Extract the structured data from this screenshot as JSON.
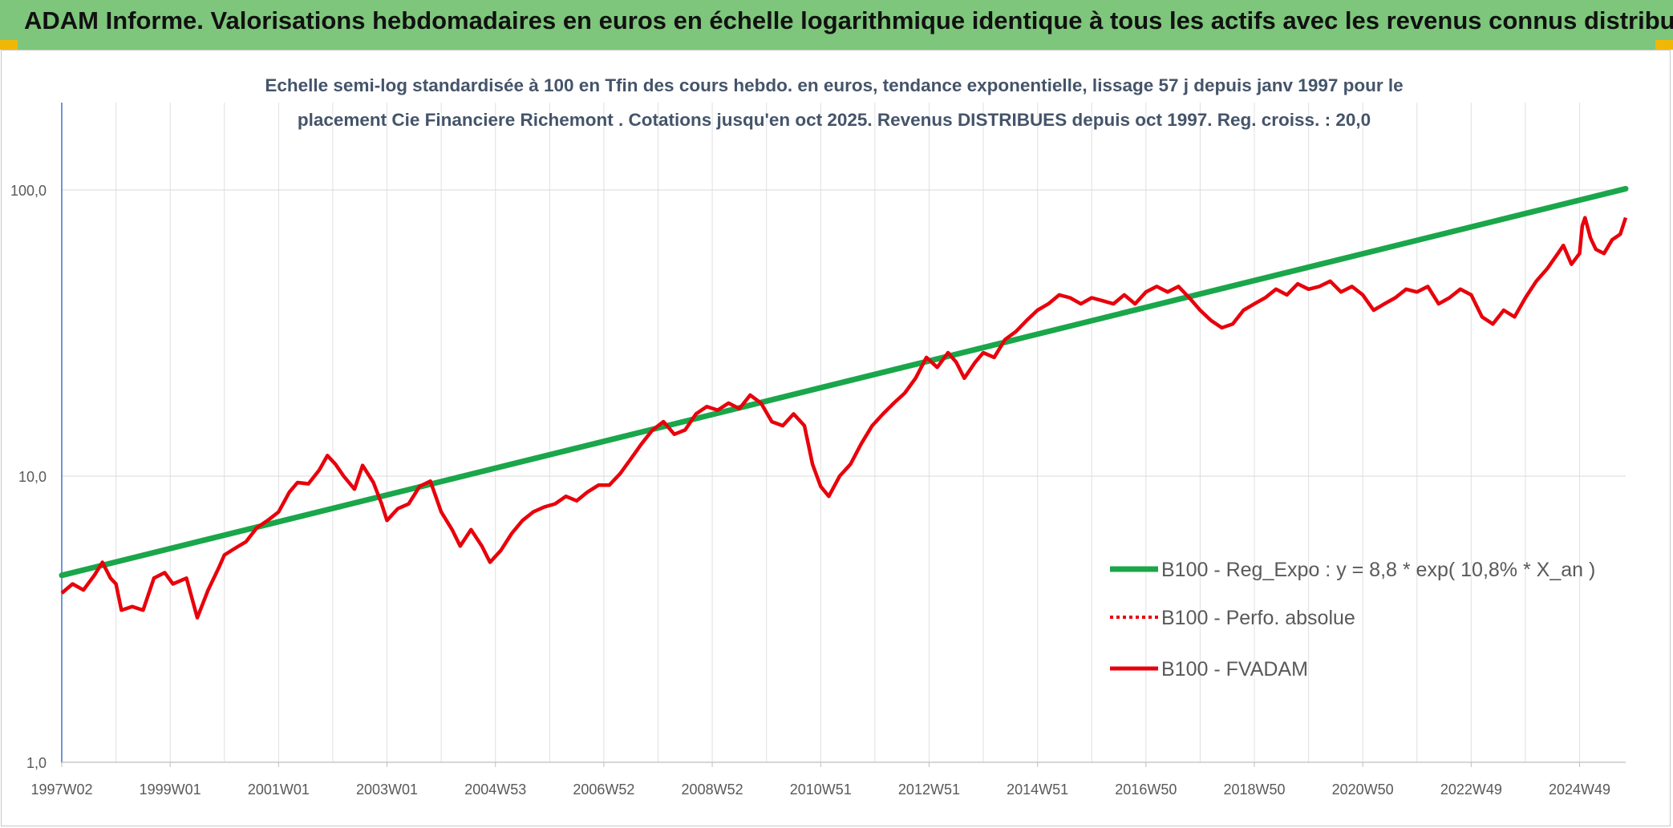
{
  "header": {
    "title": "ADAM Informe. Valorisations hebdomadaires en euros en échelle logarithmique identique à tous les actifs avec les revenus connus distribués"
  },
  "colors": {
    "header_bg": "#7dc67b",
    "trend": "#1aa64a",
    "fvadam": "#e8000b",
    "grid": "#dcdcdc",
    "axis": "#4472c4"
  },
  "chart_data": {
    "type": "line",
    "title_lines": [
      "Echelle semi-log standardisée à 100 en Tfin des cours hebdo. en euros, tendance exponentielle, lissage 57 j depuis janv 1997 pour le",
      "placement Cie Financiere Richemont . Cotations jusqu'en oct 2025. Revenus DISTRIBUES depuis oct 1997. Reg. croiss. : 20,0"
    ],
    "y_scale": "log",
    "ylim": [
      1,
      200
    ],
    "y_ticks": [
      {
        "value": 1,
        "label": "1,0"
      },
      {
        "value": 10,
        "label": "10,0"
      },
      {
        "value": 100,
        "label": "100,0"
      }
    ],
    "xlim": [
      1997.0,
      2025.85
    ],
    "x_ticks": [
      {
        "year": 1997.0,
        "label": "1997W02"
      },
      {
        "year": 1999.0,
        "label": "1999W01"
      },
      {
        "year": 2001.0,
        "label": "2001W01"
      },
      {
        "year": 2003.0,
        "label": "2003W01"
      },
      {
        "year": 2005.0,
        "label": "2004W53"
      },
      {
        "year": 2007.0,
        "label": "2006W52"
      },
      {
        "year": 2009.0,
        "label": "2008W52"
      },
      {
        "year": 2011.0,
        "label": "2010W51"
      },
      {
        "year": 2013.0,
        "label": "2012W51"
      },
      {
        "year": 2015.0,
        "label": "2014W51"
      },
      {
        "year": 2017.0,
        "label": "2016W50"
      },
      {
        "year": 2019.0,
        "label": "2018W50"
      },
      {
        "year": 2021.0,
        "label": "2020W50"
      },
      {
        "year": 2023.0,
        "label": "2022W49"
      },
      {
        "year": 2025.0,
        "label": "2024W49"
      }
    ],
    "legend_position": "bottom-right",
    "series": [
      {
        "name": "B100 - Reg_Expo : y = 8,8 * exp( 10,8% * X_an )",
        "style": "solid-thick",
        "color": "#1aa64a",
        "points": [
          [
            1997.0,
            4.5
          ],
          [
            2025.85,
            101
          ]
        ]
      },
      {
        "name": "B100 - Perfo. absolue",
        "style": "dotted",
        "color": "#e8000b",
        "points": []
      },
      {
        "name": "B100 - FVADAM",
        "style": "solid",
        "color": "#e8000b",
        "points": [
          [
            1997.0,
            3.9
          ],
          [
            1997.2,
            4.2
          ],
          [
            1997.4,
            4.0
          ],
          [
            1997.6,
            4.5
          ],
          [
            1997.75,
            5.0
          ],
          [
            1997.9,
            4.4
          ],
          [
            1998.0,
            4.2
          ],
          [
            1998.1,
            3.4
          ],
          [
            1998.3,
            3.5
          ],
          [
            1998.5,
            3.4
          ],
          [
            1998.7,
            4.4
          ],
          [
            1998.9,
            4.6
          ],
          [
            1999.05,
            4.2
          ],
          [
            1999.3,
            4.4
          ],
          [
            1999.5,
            3.2
          ],
          [
            1999.7,
            4.0
          ],
          [
            1999.9,
            4.8
          ],
          [
            2000.0,
            5.3
          ],
          [
            2000.2,
            5.6
          ],
          [
            2000.4,
            5.9
          ],
          [
            2000.6,
            6.6
          ],
          [
            2000.8,
            7.0
          ],
          [
            2001.0,
            7.5
          ],
          [
            2001.2,
            8.8
          ],
          [
            2001.35,
            9.5
          ],
          [
            2001.55,
            9.4
          ],
          [
            2001.75,
            10.5
          ],
          [
            2001.9,
            11.8
          ],
          [
            2002.05,
            11.0
          ],
          [
            2002.2,
            10.0
          ],
          [
            2002.4,
            9.0
          ],
          [
            2002.55,
            10.9
          ],
          [
            2002.75,
            9.5
          ],
          [
            2002.9,
            8.0
          ],
          [
            2003.0,
            7.0
          ],
          [
            2003.2,
            7.7
          ],
          [
            2003.4,
            8.0
          ],
          [
            2003.6,
            9.2
          ],
          [
            2003.8,
            9.6
          ],
          [
            2004.0,
            7.5
          ],
          [
            2004.2,
            6.5
          ],
          [
            2004.35,
            5.7
          ],
          [
            2004.55,
            6.5
          ],
          [
            2004.75,
            5.7
          ],
          [
            2004.9,
            5.0
          ],
          [
            2005.1,
            5.5
          ],
          [
            2005.3,
            6.3
          ],
          [
            2005.5,
            7.0
          ],
          [
            2005.7,
            7.5
          ],
          [
            2005.9,
            7.8
          ],
          [
            2006.1,
            8.0
          ],
          [
            2006.3,
            8.5
          ],
          [
            2006.5,
            8.2
          ],
          [
            2006.7,
            8.8
          ],
          [
            2006.9,
            9.3
          ],
          [
            2007.1,
            9.3
          ],
          [
            2007.3,
            10.2
          ],
          [
            2007.5,
            11.5
          ],
          [
            2007.7,
            13.0
          ],
          [
            2007.9,
            14.5
          ],
          [
            2008.1,
            15.5
          ],
          [
            2008.3,
            14.0
          ],
          [
            2008.5,
            14.5
          ],
          [
            2008.7,
            16.5
          ],
          [
            2008.9,
            17.5
          ],
          [
            2009.1,
            17.0
          ],
          [
            2009.3,
            18.0
          ],
          [
            2009.5,
            17.2
          ],
          [
            2009.7,
            19.2
          ],
          [
            2009.9,
            18.0
          ],
          [
            2010.1,
            15.5
          ],
          [
            2010.3,
            15.0
          ],
          [
            2010.5,
            16.5
          ],
          [
            2010.7,
            15.0
          ],
          [
            2010.85,
            11.0
          ],
          [
            2011.0,
            9.2
          ],
          [
            2011.15,
            8.5
          ],
          [
            2011.35,
            10.0
          ],
          [
            2011.55,
            11.0
          ],
          [
            2011.75,
            13.0
          ],
          [
            2011.95,
            15.0
          ],
          [
            2012.15,
            16.5
          ],
          [
            2012.35,
            18.0
          ],
          [
            2012.55,
            19.5
          ],
          [
            2012.75,
            22.0
          ],
          [
            2012.95,
            26.0
          ],
          [
            2013.15,
            24.0
          ],
          [
            2013.35,
            27.0
          ],
          [
            2013.5,
            25.0
          ],
          [
            2013.65,
            22.0
          ],
          [
            2013.85,
            25.0
          ],
          [
            2014.0,
            27.0
          ],
          [
            2014.2,
            26.0
          ],
          [
            2014.4,
            30.0
          ],
          [
            2014.6,
            32.0
          ],
          [
            2014.8,
            35.0
          ],
          [
            2015.0,
            38.0
          ],
          [
            2015.2,
            40.0
          ],
          [
            2015.4,
            43.0
          ],
          [
            2015.6,
            42.0
          ],
          [
            2015.8,
            40.0
          ],
          [
            2016.0,
            42.0
          ],
          [
            2016.2,
            41.0
          ],
          [
            2016.4,
            40.0
          ],
          [
            2016.6,
            43.0
          ],
          [
            2016.8,
            40.0
          ],
          [
            2017.0,
            44.0
          ],
          [
            2017.2,
            46.0
          ],
          [
            2017.4,
            44.0
          ],
          [
            2017.6,
            46.0
          ],
          [
            2017.8,
            42.0
          ],
          [
            2018.0,
            38.0
          ],
          [
            2018.2,
            35.0
          ],
          [
            2018.4,
            33.0
          ],
          [
            2018.6,
            34.0
          ],
          [
            2018.8,
            38.0
          ],
          [
            2019.0,
            40.0
          ],
          [
            2019.2,
            42.0
          ],
          [
            2019.4,
            45.0
          ],
          [
            2019.6,
            43.0
          ],
          [
            2019.8,
            47.0
          ],
          [
            2020.0,
            45.0
          ],
          [
            2020.2,
            46.0
          ],
          [
            2020.4,
            48.0
          ],
          [
            2020.6,
            44.0
          ],
          [
            2020.8,
            46.0
          ],
          [
            2021.0,
            43.0
          ],
          [
            2021.2,
            38.0
          ],
          [
            2021.4,
            40.0
          ],
          [
            2021.6,
            42.0
          ],
          [
            2021.8,
            45.0
          ],
          [
            2022.0,
            44.0
          ],
          [
            2022.2,
            46.0
          ],
          [
            2022.4,
            40.0
          ],
          [
            2022.6,
            42.0
          ],
          [
            2022.8,
            45.0
          ],
          [
            2023.0,
            43.0
          ],
          [
            2023.2,
            36.0
          ],
          [
            2023.4,
            34.0
          ],
          [
            2023.6,
            38.0
          ],
          [
            2023.8,
            36.0
          ],
          [
            2024.0,
            42.0
          ],
          [
            2024.2,
            48.0
          ],
          [
            2024.4,
            53.0
          ],
          [
            2024.6,
            60.0
          ],
          [
            2024.7,
            64.0
          ],
          [
            2024.85,
            55.0
          ],
          [
            2025.0,
            60.0
          ],
          [
            2025.05,
            75.0
          ],
          [
            2025.1,
            80.0
          ],
          [
            2025.2,
            68.0
          ],
          [
            2025.3,
            62.0
          ],
          [
            2025.45,
            60.0
          ],
          [
            2025.6,
            67.0
          ],
          [
            2025.75,
            70.0
          ],
          [
            2025.85,
            80.0
          ]
        ]
      }
    ]
  }
}
